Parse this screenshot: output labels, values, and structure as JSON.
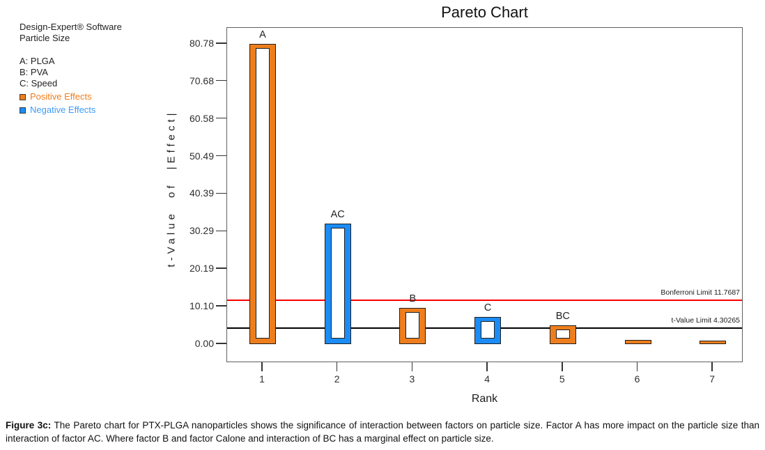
{
  "figure_title": "Pareto Chart",
  "info_panel": {
    "software": "Design-Expert® Software",
    "response": "Particle Size",
    "factors": [
      "A: PLGA",
      "B: PVA",
      "C: Speed"
    ],
    "legend": [
      {
        "label": "Positive Effects",
        "color": "#EE7E1D"
      },
      {
        "label": "Negative Effects",
        "color": "#3D9BF9"
      }
    ]
  },
  "colors": {
    "positive_bar": "#EE7E1D",
    "negative_bar": "#1B8CF5",
    "bonferroni_line": "#FF0000",
    "tvalue_line": "#000000"
  },
  "chart_data": {
    "type": "bar",
    "title": "Pareto Chart",
    "xlabel": "Rank",
    "ylabel": "t-Value of |Effect|",
    "categories": [
      "1",
      "2",
      "3",
      "4",
      "5",
      "6",
      "7"
    ],
    "bars": [
      {
        "rank": 1,
        "label": "A",
        "value": 80.78,
        "effect": "positive"
      },
      {
        "rank": 2,
        "label": "AC",
        "value": 32.5,
        "effect": "negative"
      },
      {
        "rank": 3,
        "label": "B",
        "value": 9.7,
        "effect": "positive"
      },
      {
        "rank": 4,
        "label": "C",
        "value": 7.3,
        "effect": "negative"
      },
      {
        "rank": 5,
        "label": "BC",
        "value": 5.1,
        "effect": "positive"
      },
      {
        "rank": 6,
        "label": "",
        "value": 1.2,
        "effect": "positive"
      },
      {
        "rank": 7,
        "label": "",
        "value": 0.9,
        "effect": "positive"
      }
    ],
    "yticks": [
      "0.00",
      "10.10",
      "20.19",
      "30.29",
      "40.39",
      "50.49",
      "60.58",
      "70.68",
      "80.78"
    ],
    "ylim": [
      -4.9,
      85.1
    ],
    "grid": false,
    "legend_position": "outside-top-left",
    "reference_lines": [
      {
        "label": "Bonferroni Limit 11.7687",
        "value": 11.7687,
        "color": "#FF0000"
      },
      {
        "label": "t-Value Limit 4.30265",
        "value": 4.30265,
        "color": "#000000"
      }
    ]
  },
  "caption": {
    "prefix": "Figure 3c:",
    "text": "The Pareto chart for PTX-PLGA nanoparticles shows the significance of interaction between factors on particle size. Factor A has more impact on the particle size than interaction of factor AC. Where factor B and factor Calone and interaction of BC has a marginal effect on particle size."
  }
}
